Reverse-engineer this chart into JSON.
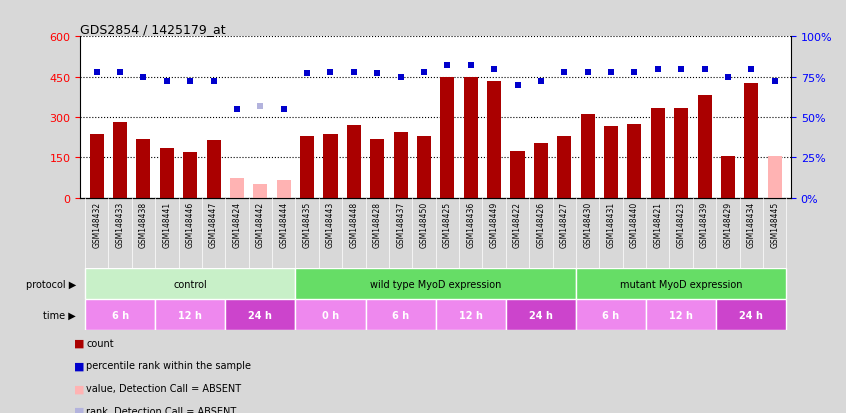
{
  "title": "GDS2854 / 1425179_at",
  "samples": [
    "GSM148432",
    "GSM148433",
    "GSM148438",
    "GSM148441",
    "GSM148446",
    "GSM148447",
    "GSM148424",
    "GSM148442",
    "GSM148444",
    "GSM148435",
    "GSM148443",
    "GSM148448",
    "GSM148428",
    "GSM148437",
    "GSM148450",
    "GSM148425",
    "GSM148436",
    "GSM148449",
    "GSM148422",
    "GSM148426",
    "GSM148427",
    "GSM148430",
    "GSM148431",
    "GSM148440",
    "GSM148421",
    "GSM148423",
    "GSM148439",
    "GSM148429",
    "GSM148434",
    "GSM148445"
  ],
  "counts": [
    235,
    280,
    220,
    185,
    170,
    215,
    75,
    50,
    65,
    230,
    235,
    270,
    220,
    245,
    230,
    450,
    450,
    435,
    175,
    205,
    230,
    310,
    265,
    275,
    335,
    335,
    380,
    155,
    425,
    155
  ],
  "absent_mask": [
    false,
    false,
    false,
    false,
    false,
    false,
    true,
    true,
    true,
    false,
    false,
    false,
    false,
    false,
    false,
    false,
    false,
    false,
    false,
    false,
    false,
    false,
    false,
    false,
    false,
    false,
    false,
    false,
    false,
    true
  ],
  "percentile_ranks": [
    78,
    78,
    75,
    72,
    72,
    72,
    55,
    null,
    55,
    77,
    78,
    78,
    77,
    75,
    78,
    82,
    82,
    80,
    70,
    72,
    78,
    78,
    78,
    78,
    80,
    80,
    80,
    75,
    80,
    72
  ],
  "absent_rank_vals": [
    null,
    null,
    null,
    null,
    null,
    null,
    null,
    57,
    null,
    null,
    null,
    null,
    null,
    null,
    null,
    null,
    null,
    null,
    null,
    null,
    null,
    null,
    null,
    null,
    null,
    null,
    null,
    null,
    null,
    null
  ],
  "ylim_left": [
    0,
    600
  ],
  "ylim_right": [
    0,
    100
  ],
  "yticks_left": [
    0,
    150,
    300,
    450,
    600
  ],
  "yticks_right": [
    0,
    25,
    50,
    75,
    100
  ],
  "ytick_labels_left": [
    "0",
    "150",
    "300",
    "450",
    "600"
  ],
  "ytick_labels_right": [
    "0%",
    "25%",
    "50%",
    "75%",
    "100%"
  ],
  "bar_color_present": "#aa0000",
  "bar_color_absent": "#ffb3b3",
  "dot_color_present": "#0000cc",
  "dot_color_absent": "#b3b3dd",
  "protocol_groups": [
    {
      "label": "control",
      "start": 0,
      "end": 9,
      "color": "#c8f0c8"
    },
    {
      "label": "wild type MyoD expression",
      "start": 9,
      "end": 21,
      "color": "#66dd66"
    },
    {
      "label": "mutant MyoD expression",
      "start": 21,
      "end": 30,
      "color": "#66dd66"
    }
  ],
  "time_groups": [
    {
      "label": "6 h",
      "start": 0,
      "end": 3,
      "color": "#ee88ee"
    },
    {
      "label": "12 h",
      "start": 3,
      "end": 6,
      "color": "#ee88ee"
    },
    {
      "label": "24 h",
      "start": 6,
      "end": 9,
      "color": "#cc44cc"
    },
    {
      "label": "0 h",
      "start": 9,
      "end": 12,
      "color": "#ee88ee"
    },
    {
      "label": "6 h",
      "start": 12,
      "end": 15,
      "color": "#ee88ee"
    },
    {
      "label": "12 h",
      "start": 15,
      "end": 18,
      "color": "#ee88ee"
    },
    {
      "label": "24 h",
      "start": 18,
      "end": 21,
      "color": "#cc44cc"
    },
    {
      "label": "6 h",
      "start": 21,
      "end": 24,
      "color": "#ee88ee"
    },
    {
      "label": "12 h",
      "start": 24,
      "end": 27,
      "color": "#ee88ee"
    },
    {
      "label": "24 h",
      "start": 27,
      "end": 30,
      "color": "#cc44cc"
    }
  ],
  "bg_color": "#d8d8d8",
  "plot_bg_color": "#ffffff",
  "xticklabel_bg": "#cccccc",
  "grid_color": "#000000"
}
